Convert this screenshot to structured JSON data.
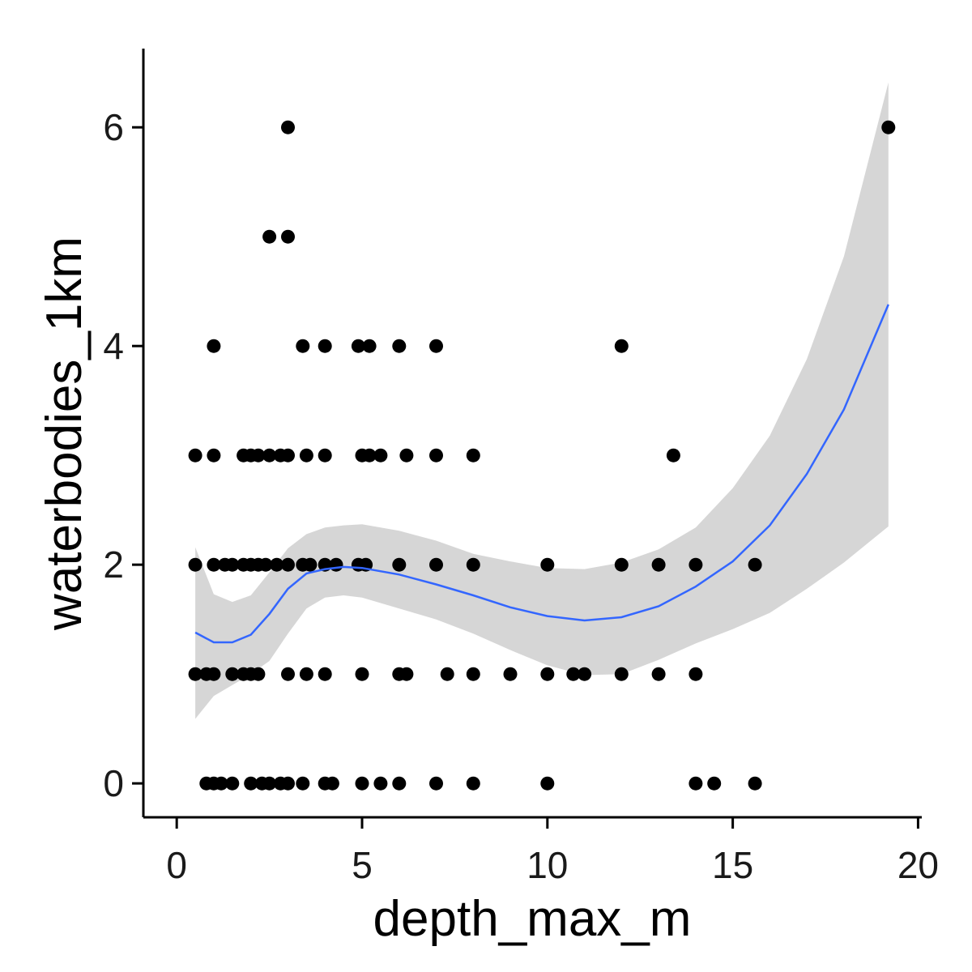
{
  "chart_data": {
    "type": "scatter",
    "xlabel": "depth_max_m",
    "ylabel": "waterbodies_1km",
    "xlim": [
      -0.9,
      20.1
    ],
    "ylim": [
      -0.31,
      6.72
    ],
    "x_ticks": [
      0,
      5,
      10,
      15,
      20
    ],
    "x_tick_labels": [
      "0",
      "5",
      "10",
      "15",
      "20"
    ],
    "y_ticks": [
      0,
      2,
      4,
      6
    ],
    "y_tick_labels": [
      "0",
      "2",
      "4",
      "6"
    ],
    "grid": false,
    "legend": "none",
    "points": [
      [
        0.8,
        0
      ],
      [
        1.0,
        0
      ],
      [
        1.2,
        0
      ],
      [
        1.5,
        0
      ],
      [
        2.0,
        0
      ],
      [
        2.3,
        0
      ],
      [
        2.5,
        0
      ],
      [
        2.8,
        0
      ],
      [
        3.0,
        0
      ],
      [
        3.4,
        0
      ],
      [
        4.0,
        0
      ],
      [
        4.2,
        0
      ],
      [
        5.0,
        0
      ],
      [
        5.5,
        0
      ],
      [
        6.0,
        0
      ],
      [
        7.0,
        0
      ],
      [
        8.0,
        0
      ],
      [
        10.0,
        0
      ],
      [
        14.0,
        0
      ],
      [
        14.5,
        0
      ],
      [
        15.6,
        0
      ],
      [
        0.5,
        1
      ],
      [
        0.8,
        1
      ],
      [
        1.0,
        1
      ],
      [
        1.5,
        1
      ],
      [
        1.8,
        1
      ],
      [
        2.0,
        1
      ],
      [
        2.2,
        1
      ],
      [
        3.0,
        1
      ],
      [
        3.5,
        1
      ],
      [
        4.0,
        1
      ],
      [
        5.0,
        1
      ],
      [
        6.0,
        1
      ],
      [
        6.2,
        1
      ],
      [
        7.3,
        1
      ],
      [
        8.0,
        1
      ],
      [
        9.0,
        1
      ],
      [
        10.0,
        1
      ],
      [
        10.7,
        1
      ],
      [
        11.0,
        1
      ],
      [
        12.0,
        1
      ],
      [
        13.0,
        1
      ],
      [
        14.0,
        1
      ],
      [
        0.5,
        2
      ],
      [
        1.0,
        2
      ],
      [
        1.3,
        2
      ],
      [
        1.5,
        2
      ],
      [
        1.8,
        2
      ],
      [
        2.0,
        2
      ],
      [
        2.2,
        2
      ],
      [
        2.4,
        2
      ],
      [
        2.7,
        2
      ],
      [
        3.0,
        2
      ],
      [
        3.4,
        2
      ],
      [
        3.6,
        2
      ],
      [
        4.0,
        2
      ],
      [
        4.3,
        2
      ],
      [
        4.9,
        2
      ],
      [
        5.1,
        2
      ],
      [
        6.0,
        2
      ],
      [
        7.0,
        2
      ],
      [
        8.0,
        2
      ],
      [
        10.0,
        2
      ],
      [
        12.0,
        2
      ],
      [
        13.0,
        2
      ],
      [
        14.0,
        2
      ],
      [
        15.6,
        2
      ],
      [
        0.5,
        3
      ],
      [
        1.0,
        3
      ],
      [
        1.8,
        3
      ],
      [
        2.0,
        3
      ],
      [
        2.2,
        3
      ],
      [
        2.5,
        3
      ],
      [
        2.8,
        3
      ],
      [
        3.0,
        3
      ],
      [
        3.5,
        3
      ],
      [
        4.0,
        3
      ],
      [
        5.0,
        3
      ],
      [
        5.2,
        3
      ],
      [
        5.5,
        3
      ],
      [
        6.2,
        3
      ],
      [
        7.0,
        3
      ],
      [
        8.0,
        3
      ],
      [
        13.4,
        3
      ],
      [
        1.0,
        4
      ],
      [
        3.4,
        4
      ],
      [
        4.0,
        4
      ],
      [
        4.9,
        4
      ],
      [
        5.2,
        4
      ],
      [
        6.0,
        4
      ],
      [
        7.0,
        4
      ],
      [
        12.0,
        4
      ],
      [
        2.5,
        5
      ],
      [
        3.0,
        5
      ],
      [
        3.0,
        6
      ],
      [
        19.2,
        6
      ]
    ],
    "smooth": {
      "color": "#3366ff",
      "x": [
        0.5,
        1.0,
        1.5,
        2.0,
        2.5,
        3.0,
        3.5,
        4.0,
        4.5,
        5.0,
        6.0,
        7.0,
        8.0,
        9.0,
        10.0,
        11.0,
        12.0,
        13.0,
        14.0,
        15.0,
        16.0,
        17.0,
        18.0,
        19.2
      ],
      "y": [
        1.38,
        1.29,
        1.29,
        1.36,
        1.55,
        1.78,
        1.92,
        1.96,
        1.98,
        1.97,
        1.91,
        1.82,
        1.72,
        1.61,
        1.53,
        1.49,
        1.52,
        1.62,
        1.8,
        2.03,
        2.36,
        2.83,
        3.42,
        4.38
      ],
      "lower": [
        0.59,
        0.8,
        0.9,
        1.0,
        1.12,
        1.37,
        1.6,
        1.7,
        1.72,
        1.7,
        1.6,
        1.5,
        1.37,
        1.22,
        1.08,
        0.99,
        1.0,
        1.13,
        1.28,
        1.41,
        1.56,
        1.78,
        2.02,
        2.35
      ],
      "upper": [
        2.16,
        1.73,
        1.66,
        1.72,
        1.93,
        2.15,
        2.28,
        2.34,
        2.36,
        2.37,
        2.31,
        2.22,
        2.1,
        2.03,
        1.97,
        1.96,
        2.02,
        2.14,
        2.34,
        2.7,
        3.18,
        3.88,
        4.82,
        6.41
      ]
    }
  }
}
